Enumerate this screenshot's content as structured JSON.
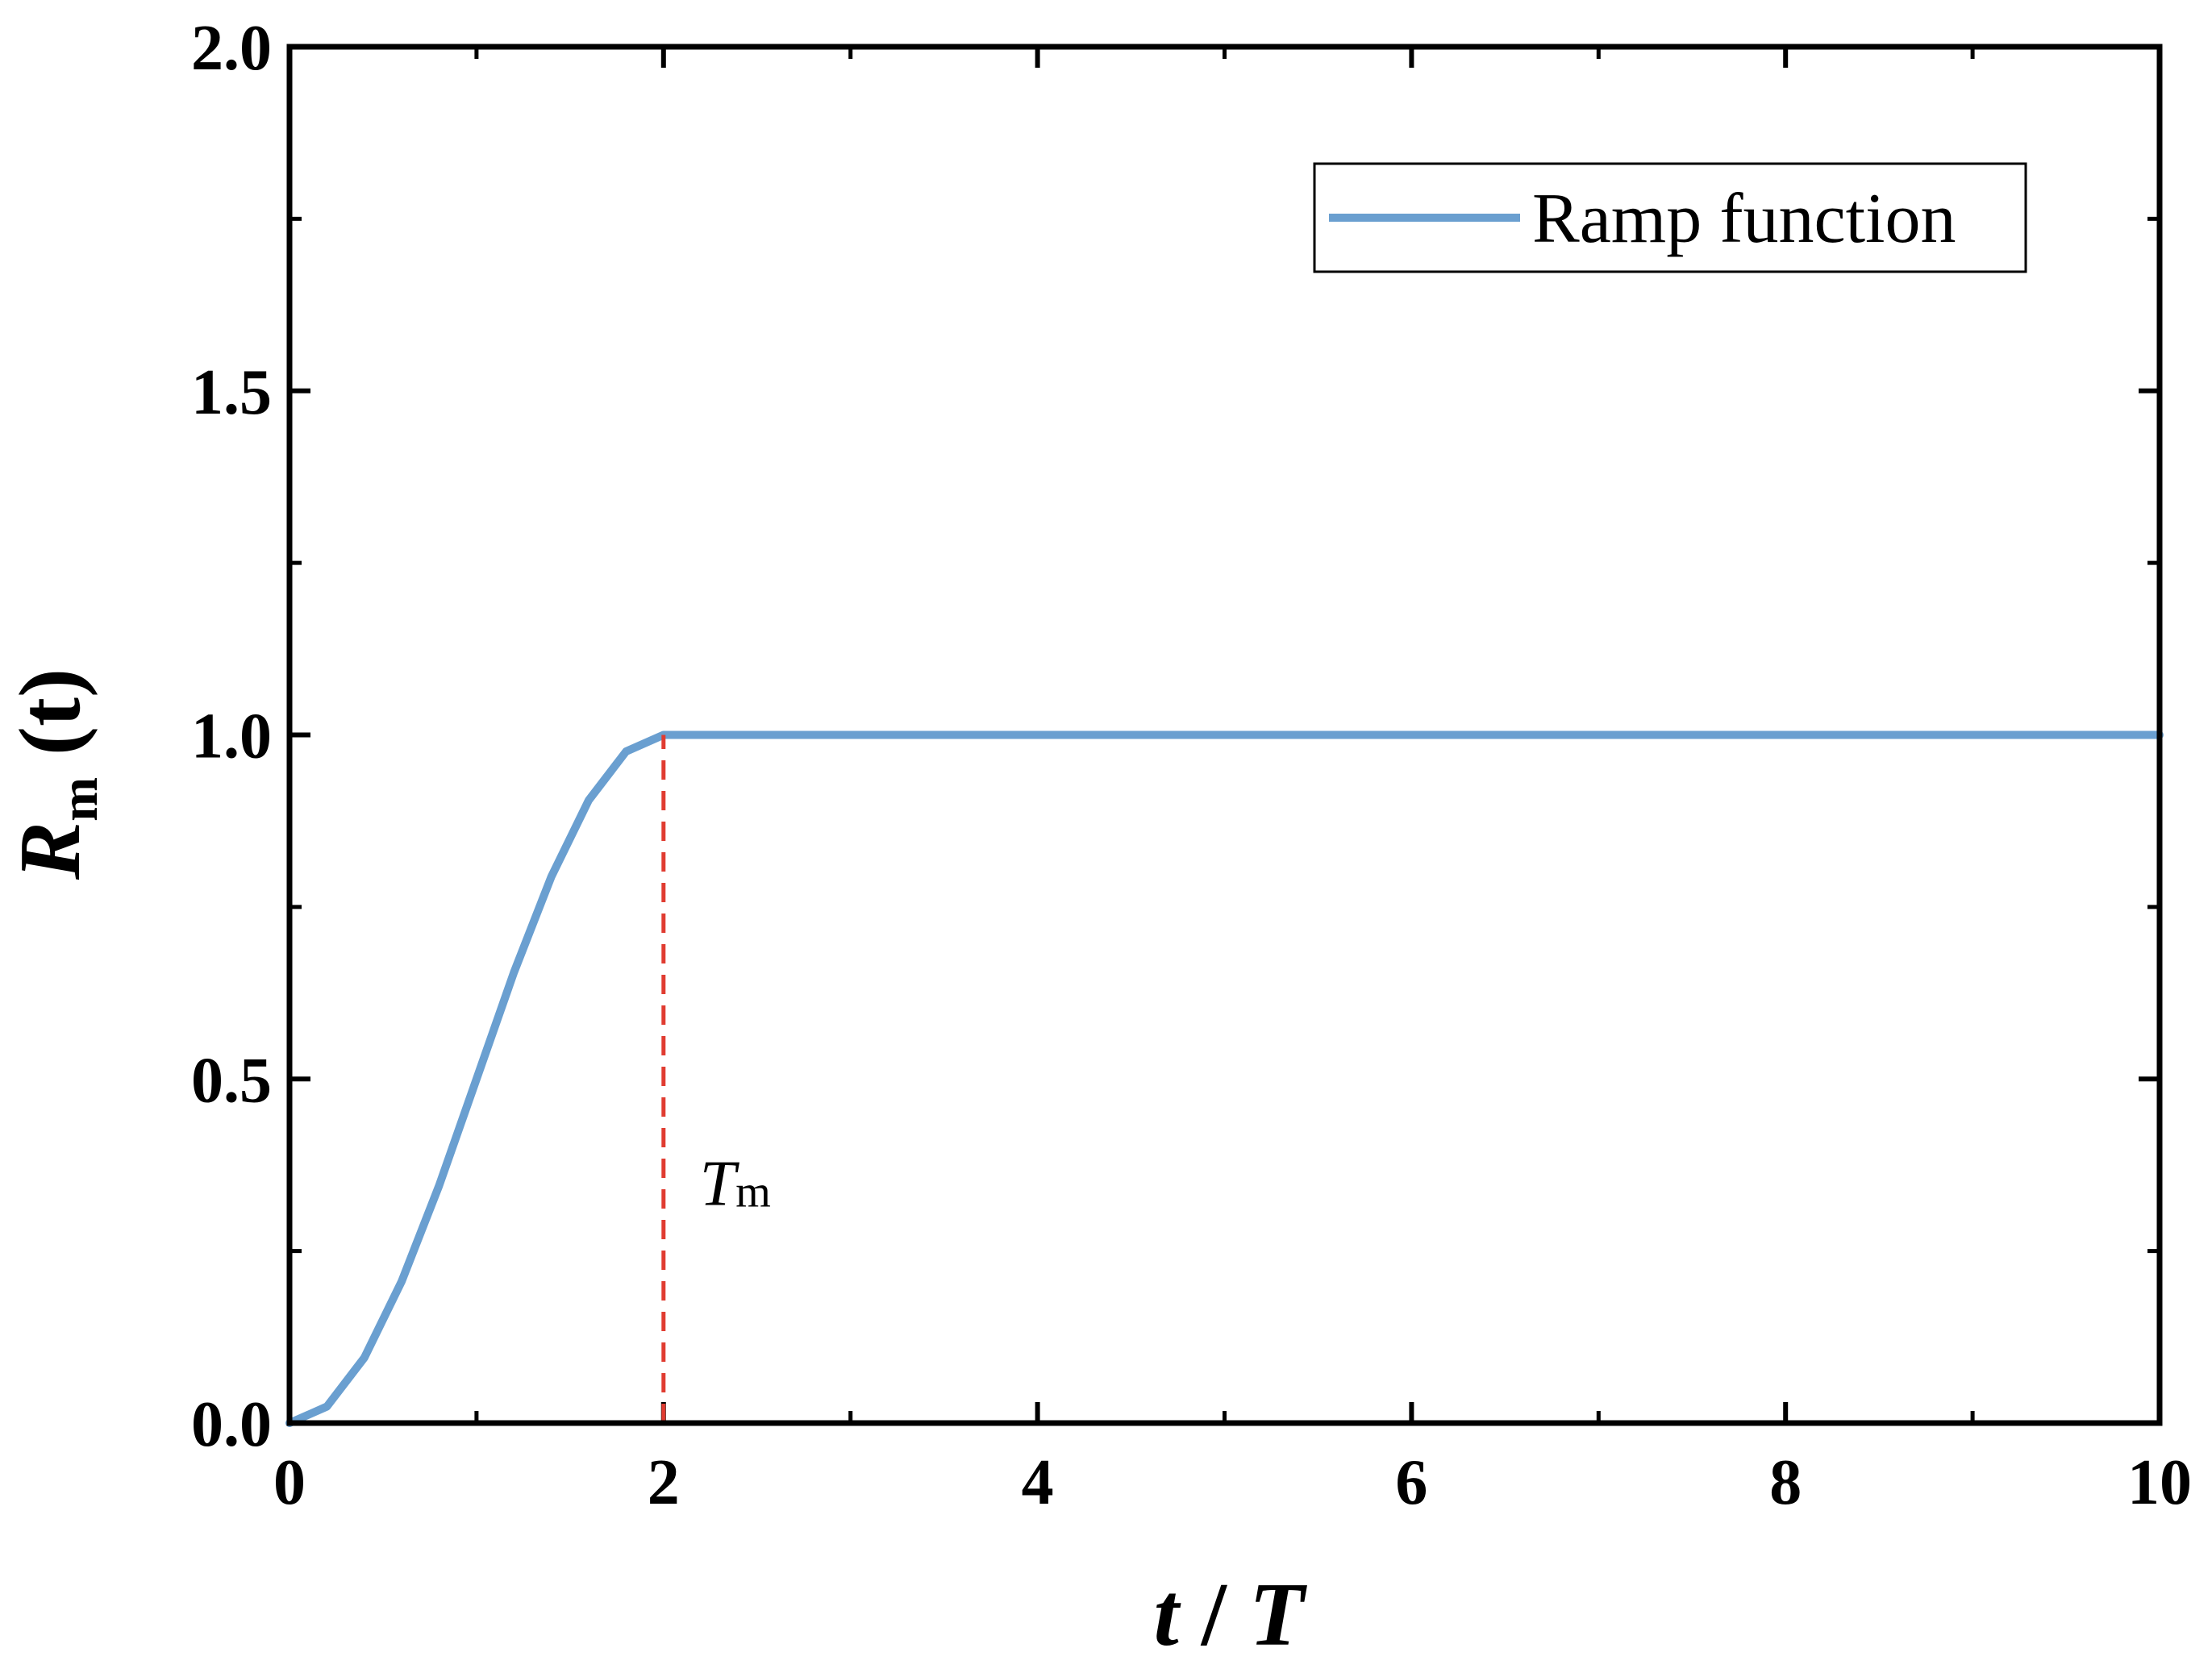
{
  "chart_data": {
    "type": "line",
    "xlim": [
      0,
      10
    ],
    "ylim": [
      0,
      2.0
    ],
    "x_ticks": [
      "0",
      "2",
      "4",
      "6",
      "8",
      "10"
    ],
    "y_ticks": [
      "0.0",
      "0.5",
      "1.0",
      "1.5",
      "2.0"
    ],
    "xlabel": {
      "main": "t",
      "sep": " / ",
      "second": "T"
    },
    "ylabel": {
      "main": "R",
      "sub": "m",
      "arg": " (t)"
    },
    "series": [
      {
        "name": "Ramp function",
        "color": "#6a9fd0",
        "x": [
          0,
          0.2,
          0.4,
          0.6,
          0.8,
          1.0,
          1.2,
          1.4,
          1.6,
          1.8,
          2.0,
          4,
          6,
          8,
          10
        ],
        "y": [
          0,
          0.024,
          0.095,
          0.206,
          0.345,
          0.5,
          0.655,
          0.794,
          0.905,
          0.976,
          1.0,
          1.0,
          1.0,
          1.0,
          1.0
        ]
      }
    ],
    "annotations": [
      {
        "type": "vline",
        "x": 2,
        "y_from": 0,
        "y_to": 1.0,
        "color": "#e03c31",
        "style": "dashed",
        "label_main": "T",
        "label_sub": "m",
        "label_at_y": 0.35
      }
    ],
    "legend": {
      "position": "top-right",
      "entries": [
        "Ramp function"
      ]
    },
    "grid": false
  }
}
